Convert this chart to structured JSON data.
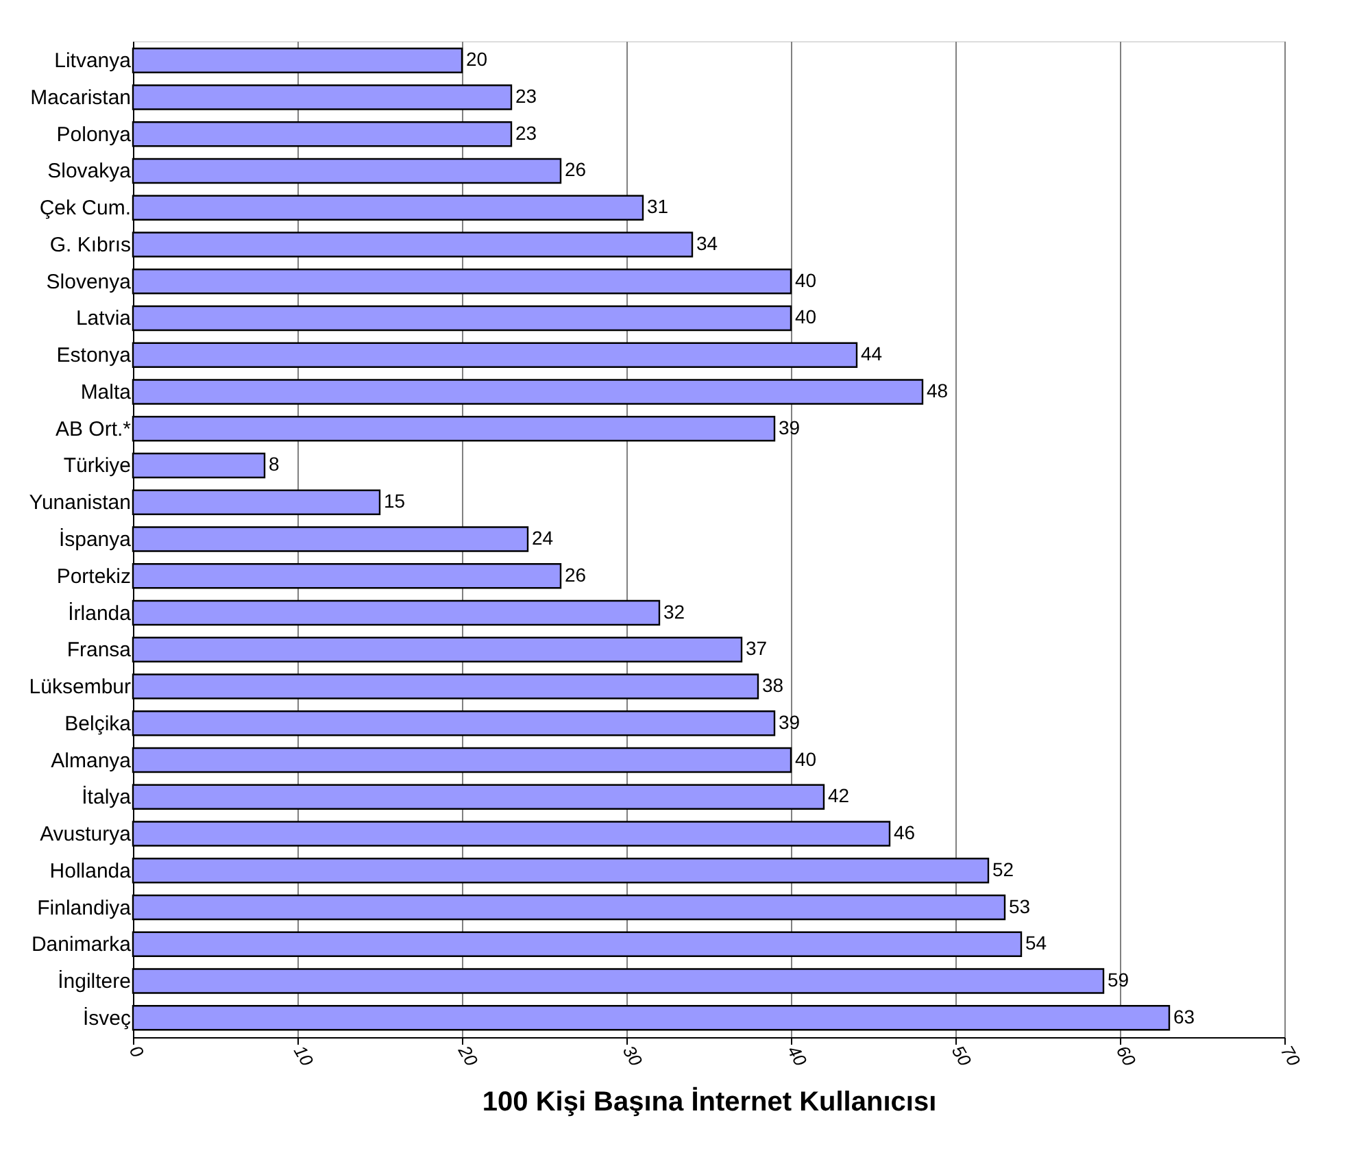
{
  "chart_data": {
    "type": "bar",
    "orientation": "horizontal",
    "xlabel": "100 Kişi Başına İnternet Kullanıcısı",
    "categories": [
      "Litvanya",
      "Macaristan",
      "Polonya",
      "Slovakya",
      "Çek Cum.",
      "G. Kıbrıs",
      "Slovenya",
      "Latvia",
      "Estonya",
      "Malta",
      "AB Ort.*",
      "Türkiye",
      "Yunanistan",
      "İspanya",
      "Portekiz",
      "İrlanda",
      "Fransa",
      "Lüksembur",
      "Belçika",
      "Almanya",
      "İtalya",
      "Avusturya",
      "Hollanda",
      "Finlandiya",
      "Danimarka",
      "İngiltere",
      "İsveç"
    ],
    "values": [
      20,
      23,
      23,
      26,
      31,
      34,
      40,
      40,
      44,
      48,
      39,
      8,
      15,
      24,
      26,
      32,
      37,
      38,
      39,
      40,
      42,
      46,
      52,
      53,
      54,
      59,
      63
    ],
    "color": "#9999ff",
    "xlim": [
      0,
      70
    ],
    "xticks": [
      0,
      10,
      20,
      30,
      40,
      50,
      60,
      70
    ],
    "grid": "x",
    "data_labels": true
  }
}
